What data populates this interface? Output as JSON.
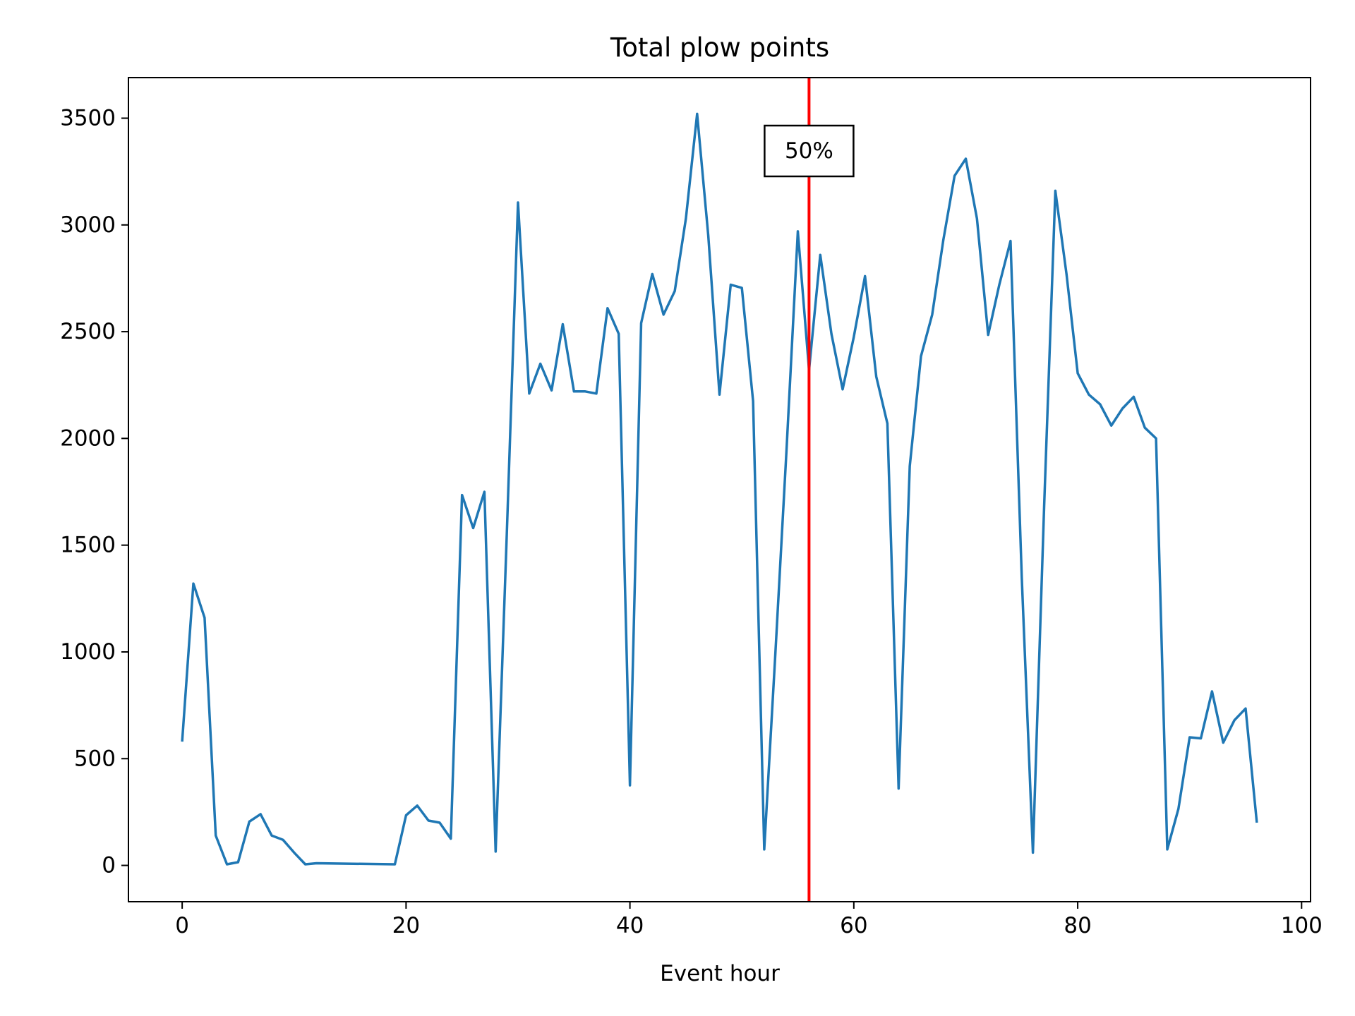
{
  "chart_data": {
    "type": "line",
    "title": "Total plow points",
    "xlabel": "Event hour",
    "ylabel": "",
    "xlim": [
      -4.8,
      100.8
    ],
    "ylim": [
      -170,
      3690
    ],
    "xticks": [
      0,
      20,
      40,
      60,
      80,
      100
    ],
    "yticks": [
      0,
      500,
      1000,
      1500,
      2000,
      2500,
      3000,
      3500
    ],
    "grid": false,
    "line_color": "#1f77b4",
    "marker_color": "#ff0000",
    "series": [
      {
        "x": [
          0,
          1,
          2,
          3,
          4,
          5,
          6,
          7,
          8,
          9,
          10,
          11,
          12,
          19,
          20,
          21,
          22,
          23,
          24,
          25,
          26,
          27,
          28,
          29,
          30,
          31,
          32,
          33,
          34,
          35,
          36,
          37,
          38,
          39,
          40,
          41,
          42,
          43,
          44,
          45,
          46,
          47,
          48,
          49,
          50,
          51,
          52,
          53,
          54,
          55,
          56,
          57,
          58,
          59,
          60,
          61,
          62,
          63,
          64,
          65,
          66,
          67,
          68,
          69,
          70,
          71,
          72,
          73,
          74,
          75,
          76,
          77,
          78,
          79,
          80,
          81,
          82,
          83,
          84,
          85,
          86,
          87,
          88,
          89,
          90,
          91,
          92,
          93,
          94,
          95,
          96
        ],
        "values": [
          580,
          1320,
          1160,
          140,
          5,
          15,
          205,
          240,
          140,
          120,
          60,
          5,
          10,
          5,
          235,
          280,
          210,
          200,
          125,
          1735,
          1580,
          1750,
          65,
          1550,
          3105,
          2210,
          2350,
          2225,
          2535,
          2220,
          2220,
          2210,
          2610,
          2490,
          375,
          2540,
          2770,
          2580,
          2690,
          3030,
          3520,
          2950,
          2205,
          2720,
          2705,
          2175,
          75,
          1000,
          1960,
          2970,
          2320,
          2860,
          2490,
          2230,
          2475,
          2760,
          2290,
          2070,
          360,
          1870,
          2385,
          2580,
          2930,
          3230,
          3310,
          3030,
          2485,
          2720,
          2925,
          1350,
          60,
          1680,
          3160,
          2770,
          2305,
          2205,
          2160,
          2060,
          2140,
          2195,
          2050,
          2000,
          75,
          265,
          600,
          595,
          815,
          575,
          680,
          735,
          200
        ]
      }
    ],
    "vline": {
      "x": 56,
      "label": "50%"
    }
  }
}
